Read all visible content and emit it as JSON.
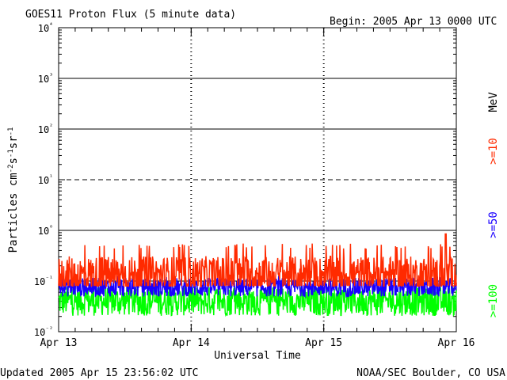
{
  "header": {
    "title": "GOES11 Proton Flux (5 minute data)",
    "begin": "Begin: 2005 Apr 13 0000 UTC"
  },
  "footer": {
    "updated": "Updated 2005 Apr 15 23:56:02 UTC",
    "source": "NOAA/SEC Boulder, CO USA"
  },
  "chart_data": {
    "type": "line",
    "ylabel": "Particles cm⁻²s⁻¹sr⁻¹",
    "xlabel": "Universal Time",
    "yscale": "log",
    "ylim": [
      0.01,
      10000
    ],
    "ytick_labels": [
      "10⁻²",
      "10⁻¹",
      "10⁰",
      "10¹",
      "10²",
      "10³",
      "10⁴"
    ],
    "x_categories": [
      "Apr 13",
      "Apr 14",
      "Apr 15",
      "Apr 16"
    ],
    "xlim_days": [
      0,
      3
    ],
    "unit_label": "MeV",
    "reference_lines": [
      {
        "value": 0.1,
        "style": "solid"
      },
      {
        "value": 1,
        "style": "solid"
      },
      {
        "value": 10,
        "style": "dashed"
      },
      {
        "value": 100,
        "style": "solid"
      },
      {
        "value": 1000,
        "style": "solid"
      }
    ],
    "series": [
      {
        "name": ">=10",
        "color": "#ff2a00",
        "baseline": 0.13,
        "min": 0.08,
        "max": 0.55,
        "peak_day": 2.92,
        "peak": 0.85
      },
      {
        "name": ">=50",
        "color": "#1a00ff",
        "baseline": 0.075,
        "min": 0.05,
        "max": 0.13
      },
      {
        "name": ">=100",
        "color": "#00ff00",
        "baseline": 0.04,
        "min": 0.017,
        "max": 0.075
      }
    ]
  }
}
